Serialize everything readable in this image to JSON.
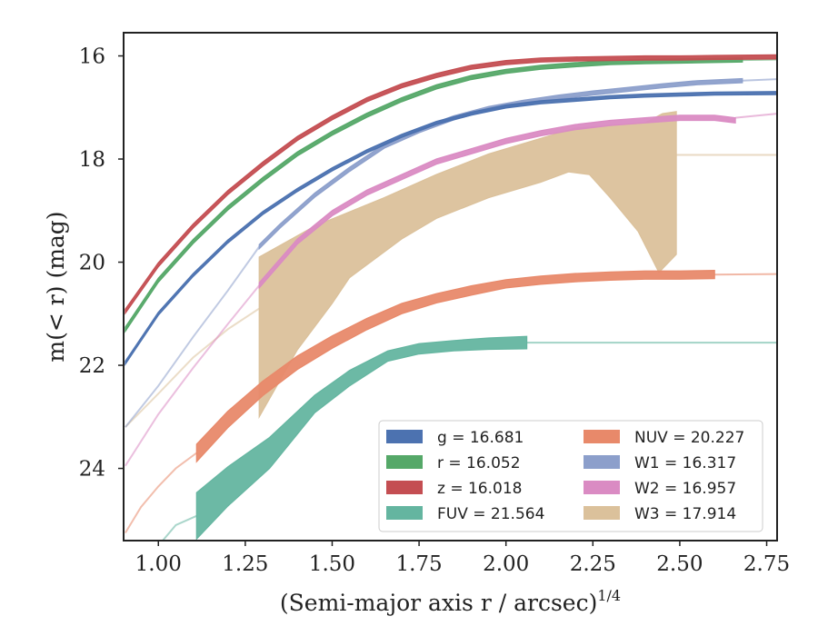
{
  "chart_data": {
    "type": "line",
    "xlabel": "(Semi-major axis r / arcsec)",
    "xlabel_exponent": "1/4",
    "ylabel": "m(< r) (mag)",
    "xlim": [
      0.9,
      2.78
    ],
    "ylim": [
      25.4,
      15.55
    ],
    "y_inverted": true,
    "grid": false,
    "legend_position": "lower-right",
    "legend_columns": 2,
    "x_ticks": [
      "1.00",
      "1.25",
      "1.50",
      "1.75",
      "2.00",
      "2.25",
      "2.50",
      "2.75"
    ],
    "x_tick_values": [
      1.0,
      1.25,
      1.5,
      1.75,
      2.0,
      2.25,
      2.5,
      2.75
    ],
    "y_ticks": [
      "16",
      "18",
      "20",
      "22",
      "24"
    ],
    "y_tick_values": [
      16,
      18,
      20,
      22,
      24
    ],
    "series": [
      {
        "name": "g = 16.681",
        "color": "#4c72b0",
        "band_halfwidth": 0.03,
        "points": [
          [
            0.905,
            21.95
          ],
          [
            1.0,
            21.0
          ],
          [
            1.1,
            20.25
          ],
          [
            1.2,
            19.6
          ],
          [
            1.3,
            19.05
          ],
          [
            1.4,
            18.6
          ],
          [
            1.5,
            18.2
          ],
          [
            1.6,
            17.85
          ],
          [
            1.7,
            17.55
          ],
          [
            1.8,
            17.3
          ],
          [
            1.9,
            17.12
          ],
          [
            2.0,
            16.98
          ],
          [
            2.1,
            16.9
          ],
          [
            2.2,
            16.85
          ],
          [
            2.3,
            16.8
          ],
          [
            2.4,
            16.77
          ],
          [
            2.5,
            16.75
          ],
          [
            2.6,
            16.73
          ],
          [
            2.78,
            16.72
          ]
        ]
      },
      {
        "name": "r = 16.052",
        "color": "#55a868",
        "band_halfwidth": 0.04,
        "points": [
          [
            0.905,
            21.3
          ],
          [
            1.0,
            20.35
          ],
          [
            1.1,
            19.6
          ],
          [
            1.2,
            18.95
          ],
          [
            1.3,
            18.4
          ],
          [
            1.4,
            17.9
          ],
          [
            1.5,
            17.5
          ],
          [
            1.6,
            17.15
          ],
          [
            1.7,
            16.85
          ],
          [
            1.8,
            16.6
          ],
          [
            1.9,
            16.42
          ],
          [
            2.0,
            16.3
          ],
          [
            2.1,
            16.22
          ],
          [
            2.2,
            16.17
          ],
          [
            2.3,
            16.13
          ],
          [
            2.4,
            16.11
          ],
          [
            2.5,
            16.1
          ],
          [
            2.68,
            16.08
          ]
        ],
        "thin_extension": [
          [
            2.68,
            16.08
          ],
          [
            2.78,
            16.07
          ]
        ]
      },
      {
        "name": "z = 16.018",
        "color": "#c44e52",
        "band_halfwidth": 0.04,
        "points": [
          [
            0.905,
            20.95
          ],
          [
            1.0,
            20.05
          ],
          [
            1.1,
            19.3
          ],
          [
            1.2,
            18.65
          ],
          [
            1.3,
            18.1
          ],
          [
            1.4,
            17.6
          ],
          [
            1.5,
            17.2
          ],
          [
            1.6,
            16.85
          ],
          [
            1.7,
            16.58
          ],
          [
            1.8,
            16.38
          ],
          [
            1.9,
            16.22
          ],
          [
            2.0,
            16.13
          ],
          [
            2.1,
            16.08
          ],
          [
            2.2,
            16.06
          ],
          [
            2.3,
            16.05
          ],
          [
            2.4,
            16.04
          ],
          [
            2.5,
            16.04
          ],
          [
            2.6,
            16.03
          ],
          [
            2.78,
            16.02
          ]
        ]
      },
      {
        "name": "FUV = 21.564",
        "color": "#64b5a0",
        "points": [
          [
            1.11,
            24.92
          ],
          [
            1.2,
            24.35
          ],
          [
            1.32,
            23.7
          ],
          [
            1.45,
            22.75
          ],
          [
            1.55,
            22.25
          ],
          [
            1.66,
            21.82
          ],
          [
            1.75,
            21.68
          ],
          [
            1.85,
            21.62
          ],
          [
            1.95,
            21.58
          ],
          [
            2.06,
            21.56
          ]
        ],
        "halfwidths": [
          0.45,
          0.38,
          0.3,
          0.17,
          0.15,
          0.1,
          0.1,
          0.1,
          0.11,
          0.12
        ],
        "thin_extension": [
          [
            2.06,
            21.56
          ],
          [
            2.78,
            21.56
          ]
        ],
        "inner_extension": [
          [
            0.9,
            26.4
          ],
          [
            0.95,
            25.9
          ],
          [
            1.0,
            25.5
          ],
          [
            1.05,
            25.1
          ],
          [
            1.11,
            24.92
          ]
        ]
      },
      {
        "name": "NUV = 20.227",
        "color": "#e8896a",
        "points": [
          [
            1.11,
            23.7
          ],
          [
            1.2,
            23.05
          ],
          [
            1.3,
            22.45
          ],
          [
            1.4,
            21.95
          ],
          [
            1.5,
            21.55
          ],
          [
            1.6,
            21.2
          ],
          [
            1.7,
            20.9
          ],
          [
            1.8,
            20.7
          ],
          [
            1.9,
            20.55
          ],
          [
            2.0,
            20.42
          ],
          [
            2.1,
            20.35
          ],
          [
            2.2,
            20.3
          ],
          [
            2.3,
            20.27
          ],
          [
            2.4,
            20.25
          ],
          [
            2.5,
            20.25
          ],
          [
            2.6,
            20.24
          ]
        ],
        "halfwidths": [
          0.17,
          0.16,
          0.14,
          0.13,
          0.12,
          0.11,
          0.1,
          0.09,
          0.09,
          0.08,
          0.08,
          0.08,
          0.08,
          0.08,
          0.08,
          0.08
        ],
        "thin_extension": [
          [
            2.6,
            20.24
          ],
          [
            2.78,
            20.23
          ]
        ],
        "inner_extension": [
          [
            0.905,
            25.25
          ],
          [
            0.95,
            24.75
          ],
          [
            1.0,
            24.35
          ],
          [
            1.05,
            24.0
          ],
          [
            1.11,
            23.7
          ]
        ]
      },
      {
        "name": "W1 = 16.317",
        "color": "#8c9fcb",
        "band_halfwidth": 0.04,
        "points": [
          [
            1.29,
            19.7
          ],
          [
            1.35,
            19.3
          ],
          [
            1.45,
            18.7
          ],
          [
            1.55,
            18.2
          ],
          [
            1.65,
            17.75
          ],
          [
            1.75,
            17.45
          ],
          [
            1.85,
            17.2
          ],
          [
            1.95,
            17.02
          ],
          [
            2.05,
            16.9
          ],
          [
            2.15,
            16.8
          ],
          [
            2.25,
            16.72
          ],
          [
            2.35,
            16.65
          ],
          [
            2.45,
            16.58
          ],
          [
            2.55,
            16.52
          ],
          [
            2.68,
            16.48
          ]
        ],
        "thin_extension": [
          [
            2.68,
            16.48
          ],
          [
            2.78,
            16.45
          ]
        ],
        "inner_extension": [
          [
            0.905,
            23.2
          ],
          [
            1.0,
            22.4
          ],
          [
            1.1,
            21.45
          ],
          [
            1.2,
            20.55
          ],
          [
            1.29,
            19.7
          ]
        ]
      },
      {
        "name": "W2 = 16.957",
        "color": "#da8bc3",
        "band_halfwidth": 0.05,
        "points": [
          [
            1.29,
            20.45
          ],
          [
            1.4,
            19.6
          ],
          [
            1.5,
            19.05
          ],
          [
            1.6,
            18.65
          ],
          [
            1.7,
            18.35
          ],
          [
            1.8,
            18.05
          ],
          [
            1.9,
            17.85
          ],
          [
            2.0,
            17.65
          ],
          [
            2.1,
            17.5
          ],
          [
            2.2,
            17.38
          ],
          [
            2.3,
            17.3
          ],
          [
            2.4,
            17.25
          ],
          [
            2.5,
            17.2
          ],
          [
            2.6,
            17.2
          ],
          [
            2.66,
            17.25
          ]
        ],
        "thin_extension": [
          [
            2.66,
            17.2
          ],
          [
            2.78,
            17.12
          ]
        ],
        "inner_extension": [
          [
            0.905,
            23.95
          ],
          [
            1.0,
            22.95
          ],
          [
            1.1,
            22.05
          ],
          [
            1.2,
            21.2
          ],
          [
            1.29,
            20.45
          ]
        ]
      },
      {
        "name": "W3 = 17.914",
        "color": "#dbc19b",
        "band_upper": [
          [
            1.29,
            19.9
          ],
          [
            1.45,
            19.3
          ],
          [
            1.65,
            18.75
          ],
          [
            1.8,
            18.3
          ],
          [
            1.95,
            17.9
          ],
          [
            2.1,
            17.6
          ],
          [
            2.2,
            17.4
          ],
          [
            2.3,
            17.35
          ],
          [
            2.4,
            17.3
          ],
          [
            2.45,
            17.12
          ],
          [
            2.49,
            17.08
          ]
        ],
        "band_lower": [
          [
            1.29,
            23.0
          ],
          [
            1.4,
            21.7
          ],
          [
            1.5,
            20.8
          ],
          [
            1.55,
            20.3
          ],
          [
            1.7,
            19.55
          ],
          [
            1.8,
            19.15
          ],
          [
            1.95,
            18.75
          ],
          [
            2.1,
            18.45
          ],
          [
            2.18,
            18.25
          ],
          [
            2.24,
            18.3
          ],
          [
            2.3,
            18.75
          ],
          [
            2.38,
            19.4
          ],
          [
            2.44,
            20.2
          ],
          [
            2.49,
            19.85
          ],
          [
            2.49,
            17.08
          ]
        ],
        "thin_extension": [
          [
            2.49,
            17.92
          ],
          [
            2.78,
            17.92
          ]
        ],
        "inner_extension": [
          [
            0.905,
            23.2
          ],
          [
            1.0,
            22.55
          ],
          [
            1.1,
            21.85
          ],
          [
            1.2,
            21.3
          ],
          [
            1.29,
            20.9
          ]
        ]
      }
    ]
  }
}
